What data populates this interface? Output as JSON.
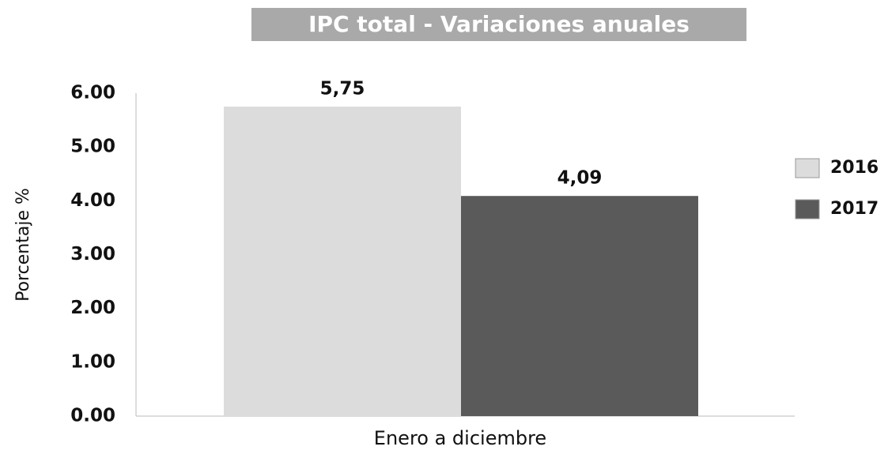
{
  "chart_data": {
    "type": "bar",
    "title": "IPC total  - Variaciones anuales",
    "ylabel": "Porcentaje %",
    "xlabel": "Enero a diciembre",
    "categories": [
      null
    ],
    "series": [
      {
        "name": "2016",
        "color": "#dcdcdc",
        "values": [
          5.75
        ],
        "value_labels": [
          "5,75"
        ]
      },
      {
        "name": "2017",
        "color": "#5a5a5a",
        "values": [
          4.09
        ],
        "value_labels": [
          "4,09"
        ]
      }
    ],
    "ylim": [
      0,
      6
    ],
    "yticks": [
      {
        "value": 0,
        "label": "0.00"
      },
      {
        "value": 1,
        "label": "1.00"
      },
      {
        "value": 2,
        "label": "2.00"
      },
      {
        "value": 3,
        "label": "3.00"
      },
      {
        "value": 4,
        "label": "4.00"
      },
      {
        "value": 5,
        "label": "5.00"
      },
      {
        "value": 6,
        "label": "6.00"
      }
    ],
    "grid": false,
    "legend": "right"
  }
}
